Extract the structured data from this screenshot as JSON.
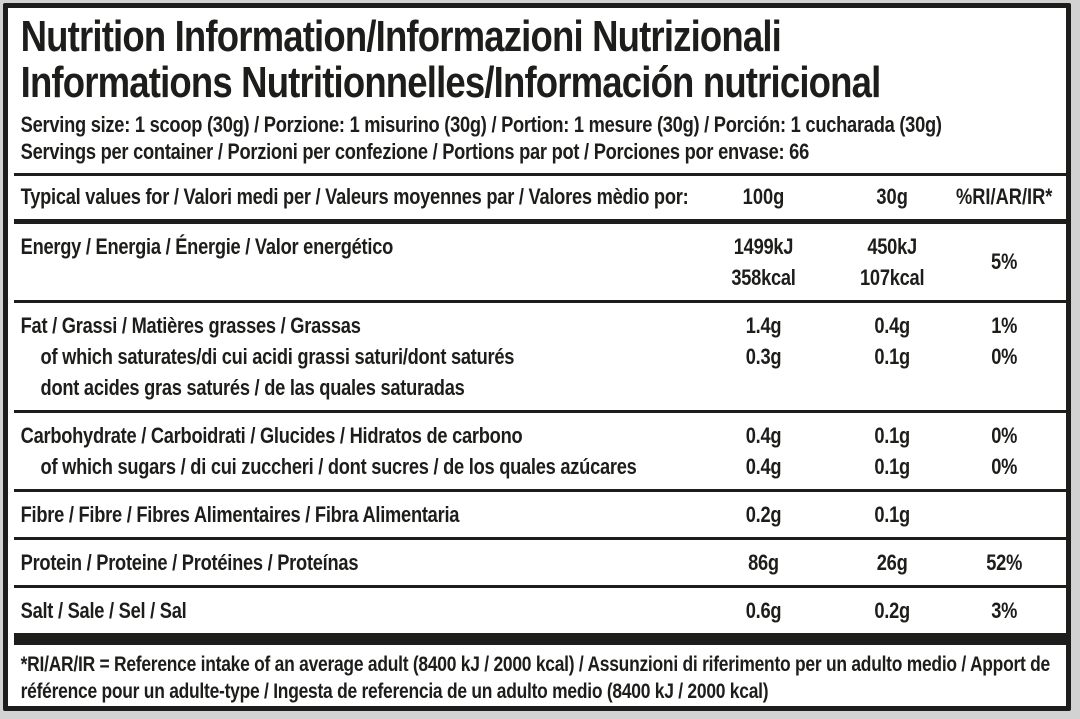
{
  "page": {
    "background": "#d2d2d2",
    "ink": "#1d1d1b",
    "paper": "#ffffff"
  },
  "label": {
    "title_line1": "Nutrition Information/Informazioni Nutrizionali",
    "title_line2": "Informations Nutritionnelles/Información nutricional",
    "serving_size": "Serving size: 1 scoop (30g) / Porzione: 1 misurino (30g) / Portion: 1 mesure (30g) / Porción: 1 cucharada (30g)",
    "servings_per_container": "Servings per container / Porzioni per confezione / Portions par pot / Porciones por envase: 66"
  },
  "table": {
    "header": {
      "label": "Typical values for / Valori medi per / Valeurs moyennes par / Valores mèdio por:",
      "col_100g": "100g",
      "col_30g": "30g",
      "col_ri": "%RI/AR/IR*"
    },
    "rows": [
      {
        "name": "energy",
        "ri_center": "5%",
        "lines": [
          {
            "label": "Energy / Energia / Énergie / Valor energético",
            "indent": false,
            "v100": "1499kJ",
            "v30": "450kJ"
          },
          {
            "label": "",
            "indent": false,
            "v100": "358kcal",
            "v30": "107kcal"
          }
        ]
      },
      {
        "name": "fat",
        "lines": [
          {
            "label": "Fat / Grassi / Matières grasses / Grassas",
            "indent": false,
            "v100": "1.4g",
            "v30": "0.4g",
            "ri": "1%"
          },
          {
            "label": "of which saturates/di cui acidi grassi saturi/dont saturés",
            "indent": true,
            "v100": "0.3g",
            "v30": "0.1g",
            "ri": "0%"
          },
          {
            "label": "dont acides gras saturés / de las quales saturadas",
            "indent": true,
            "v100": "",
            "v30": "",
            "ri": ""
          }
        ]
      },
      {
        "name": "carbohydrate",
        "lines": [
          {
            "label": "Carbohydrate / Carboidrati / Glucides / Hidratos de carbono",
            "indent": false,
            "v100": "0.4g",
            "v30": "0.1g",
            "ri": "0%"
          },
          {
            "label": "of which sugars / di cui zuccheri / dont sucres / de los quales azúcares",
            "indent": true,
            "v100": "0.4g",
            "v30": "0.1g",
            "ri": "0%"
          }
        ]
      },
      {
        "name": "fibre",
        "lines": [
          {
            "label": "Fibre / Fibre / Fibres Alimentaires / Fibra Alimentaria",
            "indent": false,
            "v100": "0.2g",
            "v30": "0.1g",
            "ri": ""
          }
        ]
      },
      {
        "name": "protein",
        "lines": [
          {
            "label": "Protein / Proteine / Protéines / Proteínas",
            "indent": false,
            "v100": "86g",
            "v30": "26g",
            "ri": "52%"
          }
        ]
      },
      {
        "name": "salt",
        "lines": [
          {
            "label": "Salt / Sale / Sel / Sal",
            "indent": false,
            "v100": "0.6g",
            "v30": "0.2g",
            "ri": "3%"
          }
        ]
      }
    ],
    "footnote": "*RI/AR/IR = Reference intake of an average adult (8400 kJ / 2000 kcal)  / Assunzioni di riferimento per un adulto medio / Apport de référence pour un adulte-type / Ingesta de referencia de un adulto medio (8400 kJ / 2000 kcal)"
  }
}
